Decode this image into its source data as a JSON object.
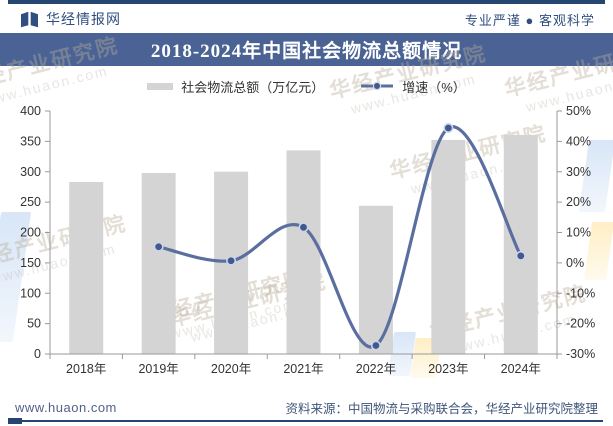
{
  "header": {
    "brand": "华经情报网",
    "slogan": "专业严谨 ● 客观科学",
    "title": "2018-2024年中国社会物流总额情况"
  },
  "chart_data": {
    "type": "bar",
    "title": "2018-2024年中国社会物流总额情况",
    "categories": [
      "2018年",
      "2019年",
      "2020年",
      "2021年",
      "2022年",
      "2023年",
      "2024年"
    ],
    "series": [
      {
        "name": "社会物流总额（万亿元）",
        "type": "bar",
        "axis": "left",
        "values": [
          283.1,
          298.0,
          300.1,
          335.2,
          244.0,
          352.4,
          360.6
        ]
      },
      {
        "name": "增速（%）",
        "type": "line",
        "axis": "right",
        "values": [
          null,
          5.3,
          0.7,
          11.7,
          -27.2,
          44.4,
          2.3
        ]
      }
    ],
    "left_axis": {
      "min": 0,
      "max": 400,
      "step": 50
    },
    "right_axis": {
      "min": -30,
      "max": 50,
      "step": 10,
      "suffix": "%"
    },
    "grid": false,
    "legend_position": "top"
  },
  "watermark": {
    "text": "华经产业研究院",
    "subtext": "www.huaon.com"
  },
  "footer": {
    "site": "www.huaon.com",
    "source": "资料来源：中国物流与采购联合会，华经产业研究院整理"
  },
  "colors": {
    "banner_bg": "#4a6394",
    "border_navy": "#264672",
    "header_text": "#2f4f80",
    "bar_fill": "#d4d4d4",
    "line_stroke": "#5a6fa0",
    "marker_fill": "#43588e",
    "marker_ring": "#ccd6e8",
    "axis_line": "#9a9a9a",
    "tick_text": "#333333"
  }
}
